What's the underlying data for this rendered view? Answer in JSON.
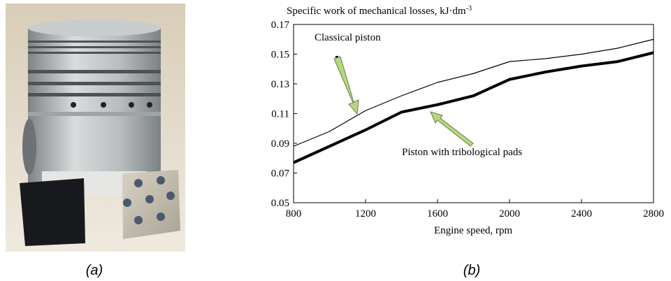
{
  "chart_data": {
    "type": "line",
    "ylabel": "Specific work of mechanical losses, kJ·dm",
    "ylabel_superscript": "-3",
    "xlabel": "Engine speed, rpm",
    "x": [
      800,
      1000,
      1200,
      1400,
      1600,
      1800,
      2000,
      2200,
      2400,
      2600,
      2800
    ],
    "series": [
      {
        "name": "Classical piston",
        "color": "#000000",
        "linewidth": 1.2,
        "values": [
          0.088,
          0.098,
          0.112,
          0.122,
          0.131,
          0.137,
          0.145,
          0.147,
          0.15,
          0.154,
          0.16
        ]
      },
      {
        "name": "Piston with tribological pads",
        "color": "#000000",
        "linewidth": 4,
        "values": [
          0.077,
          0.088,
          0.099,
          0.111,
          0.116,
          0.122,
          0.133,
          0.138,
          0.142,
          0.145,
          0.151
        ]
      }
    ],
    "xlim": [
      800,
      2800
    ],
    "xticks": [
      800,
      1200,
      1600,
      2000,
      2400,
      2800
    ],
    "ylim": [
      0.05,
      0.17
    ],
    "yticks": [
      0.05,
      0.07,
      0.09,
      0.11,
      0.13,
      0.15,
      0.17
    ],
    "grid": false
  },
  "figure": {
    "captions": [
      "(a)",
      "(b)"
    ]
  }
}
